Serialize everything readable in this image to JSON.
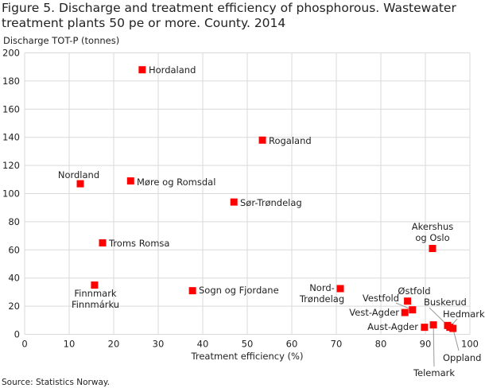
{
  "chart_data": {
    "type": "scatter",
    "title": "Figure 5. Discharge and treatment efficiency of phosphorous. Wastewater treatment plants 50 pe or more. County. 2014",
    "xlabel": "Treatment efficiency (%)",
    "ylabel": "Discharge TOT-P (tonnes)",
    "xlim": [
      0,
      100
    ],
    "ylim": [
      0,
      200
    ],
    "xticks": [
      "0",
      "10",
      "20",
      "30",
      "40",
      "50",
      "60",
      "70",
      "80",
      "90",
      "100"
    ],
    "yticks": [
      "0",
      "20",
      "40",
      "60",
      "80",
      "100",
      "120",
      "140",
      "160",
      "180",
      "200"
    ],
    "grid": true,
    "marker_color": "#ff0000",
    "source": "Source: Statistics Norway.",
    "points": [
      {
        "label": "Hordaland",
        "x": 26.4,
        "y": 188
      },
      {
        "label": "Rogaland",
        "x": 53.4,
        "y": 138
      },
      {
        "label": "Nordland",
        "x": 12.5,
        "y": 107
      },
      {
        "label": "Møre og Romsdal",
        "x": 23.8,
        "y": 109
      },
      {
        "label": "Sør-Trøndelag",
        "x": 47.0,
        "y": 94
      },
      {
        "label": "Troms Romsa",
        "x": 17.5,
        "y": 65
      },
      {
        "label": "Akershus og Oslo",
        "x": 91.6,
        "y": 61
      },
      {
        "label": "Finnmark Finnmárku",
        "x": 15.7,
        "y": 35
      },
      {
        "label": "Sogn og Fjordane",
        "x": 37.7,
        "y": 31
      },
      {
        "label": "Nord-Trøndelag",
        "x": 70.9,
        "y": 32.5
      },
      {
        "label": "Østfold",
        "x": 86.0,
        "y": 23.6
      },
      {
        "label": "Vestfold",
        "x": 87.1,
        "y": 17.4
      },
      {
        "label": "Vest-Agder",
        "x": 85.4,
        "y": 15.5
      },
      {
        "label": "Aust-Agder",
        "x": 89.8,
        "y": 5.0
      },
      {
        "label": "Telemark",
        "x": 91.8,
        "y": 6.7
      },
      {
        "label": "Buskerud",
        "x": 95.0,
        "y": 6.3
      },
      {
        "label": "Hedmark",
        "x": 95.5,
        "y": 5.0
      },
      {
        "label": "Oppland",
        "x": 96.2,
        "y": 4.2
      }
    ]
  }
}
